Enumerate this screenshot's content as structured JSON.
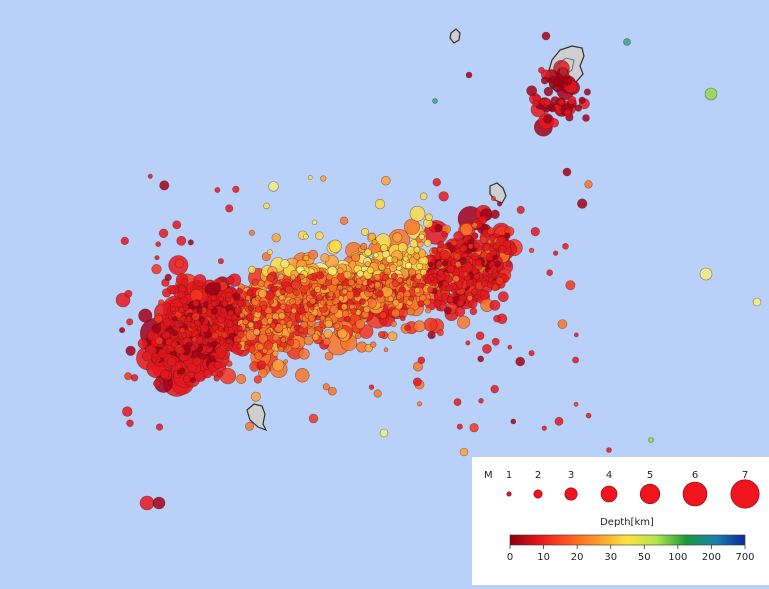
{
  "legend": {
    "magnitude_label": "M",
    "magnitudes": [
      "1",
      "2",
      "3",
      "4",
      "5",
      "6",
      "7"
    ],
    "depth_title": "Depth[km]",
    "depth_ticks": [
      "0",
      "10",
      "20",
      "30",
      "50",
      "100",
      "200",
      "700"
    ],
    "depth_colors": [
      "#8b0010",
      "#e8141e",
      "#ff5a1e",
      "#ff9d2a",
      "#ffe43c",
      "#aee64a",
      "#1a9a3a",
      "#1a7fb0",
      "#0a2a9a"
    ]
  },
  "colors": {
    "sea": "#b9d1f8",
    "land": "#c8c8c8",
    "land_outline": "#333333"
  }
}
